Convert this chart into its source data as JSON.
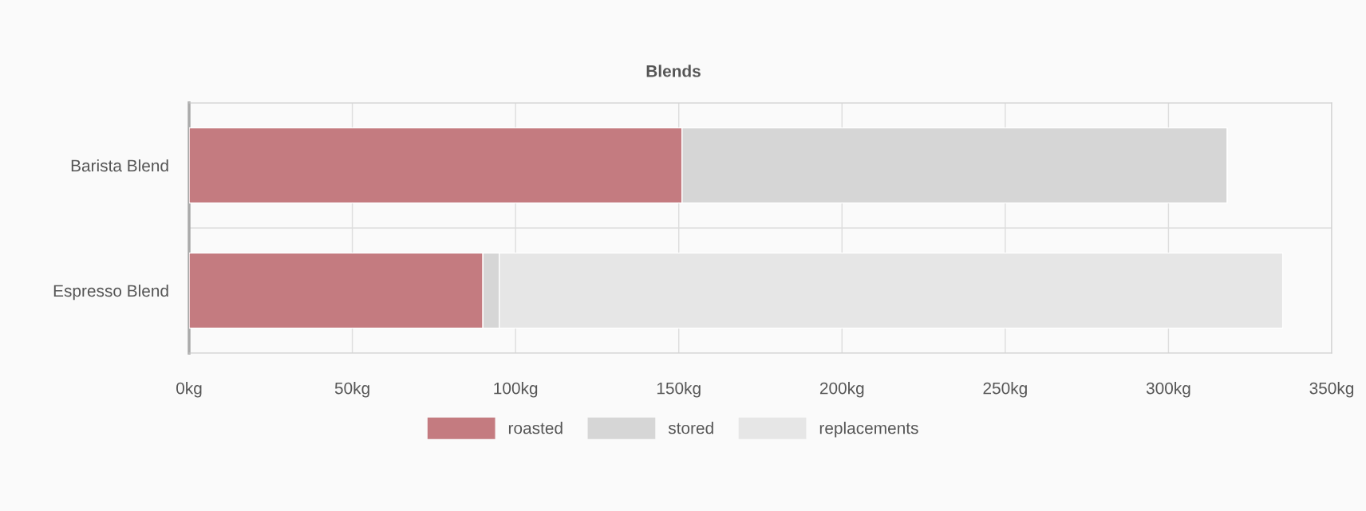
{
  "chart_data": {
    "type": "bar",
    "orientation": "horizontal",
    "stacked": true,
    "title": "Blends",
    "categories": [
      "Barista Blend",
      "Espresso Blend"
    ],
    "series": [
      {
        "name": "roasted",
        "color": "#c47b80",
        "values": [
          151,
          90
        ]
      },
      {
        "name": "stored",
        "color": "#d6d6d6",
        "values": [
          167,
          5
        ]
      },
      {
        "name": "replacements",
        "color": "#e6e6e6",
        "values": [
          null,
          240
        ]
      }
    ],
    "xlim": [
      0,
      350
    ],
    "xticks": [
      {
        "value": 0,
        "label": "0kg"
      },
      {
        "value": 50,
        "label": "50kg"
      },
      {
        "value": 100,
        "label": "100kg"
      },
      {
        "value": 150,
        "label": "150kg"
      },
      {
        "value": 200,
        "label": "200kg"
      },
      {
        "value": 250,
        "label": "250kg"
      },
      {
        "value": 300,
        "label": "300kg"
      },
      {
        "value": 350,
        "label": "350kg"
      }
    ],
    "grid": true,
    "legend": "bottom"
  }
}
